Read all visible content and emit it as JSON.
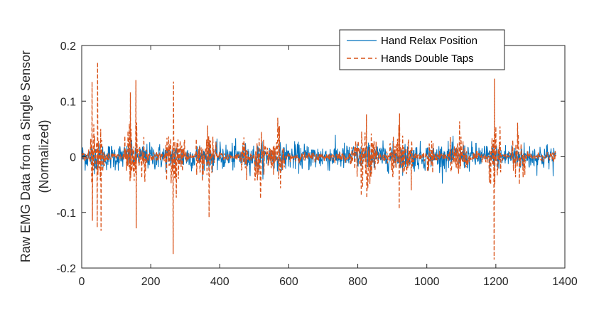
{
  "chart_data": {
    "type": "line",
    "title": "",
    "xlabel": "",
    "ylabel": "Raw EMG Data from a Single Sensor",
    "ylabel_line2": "(Normalized)",
    "xlim": [
      0,
      1400
    ],
    "ylim": [
      -0.2,
      0.2
    ],
    "xticks": [
      0,
      200,
      400,
      600,
      800,
      1000,
      1200,
      1400
    ],
    "yticks": [
      -0.2,
      -0.1,
      0,
      0.1,
      0.2
    ],
    "xtick_labels": [
      "0",
      "200",
      "400",
      "600",
      "800",
      "1000",
      "1200",
      "1400"
    ],
    "ytick_labels": [
      "-0.2",
      "-0.1",
      "0",
      "0.1",
      "0.2"
    ],
    "grid": false,
    "legend_position": "top-right",
    "n_samples": 1375,
    "series": [
      {
        "name": "Hand Relax Position",
        "color": "#0072BD",
        "style": "solid",
        "amplitude_range": [
          -0.07,
          0.05
        ],
        "baseline_noise": 0.02
      },
      {
        "name": "Hands Double Taps",
        "color": "#D95319",
        "style": "dashed",
        "bursts": [
          {
            "x": 30,
            "max": 0.135,
            "min": -0.115
          },
          {
            "x": 45,
            "max": 0.17,
            "min": -0.12
          },
          {
            "x": 55,
            "max": 0.05,
            "min": -0.133
          },
          {
            "x": 140,
            "max": 0.1,
            "min": -0.07
          },
          {
            "x": 157,
            "max": 0.125,
            "min": -0.14
          },
          {
            "x": 265,
            "max": 0.127,
            "min": -0.175
          },
          {
            "x": 368,
            "max": 0.06,
            "min": -0.127
          },
          {
            "x": 520,
            "max": 0.06,
            "min": -0.03
          },
          {
            "x": 570,
            "max": 0.045,
            "min": -0.03
          },
          {
            "x": 810,
            "max": 0.07,
            "min": -0.05
          },
          {
            "x": 825,
            "max": 0.08,
            "min": -0.095
          },
          {
            "x": 920,
            "max": 0.08,
            "min": -0.055
          },
          {
            "x": 1095,
            "max": 0.05,
            "min": -0.035
          },
          {
            "x": 1195,
            "max": 0.15,
            "min": -0.19
          },
          {
            "x": 1265,
            "max": 0.05,
            "min": -0.03
          }
        ]
      }
    ]
  }
}
